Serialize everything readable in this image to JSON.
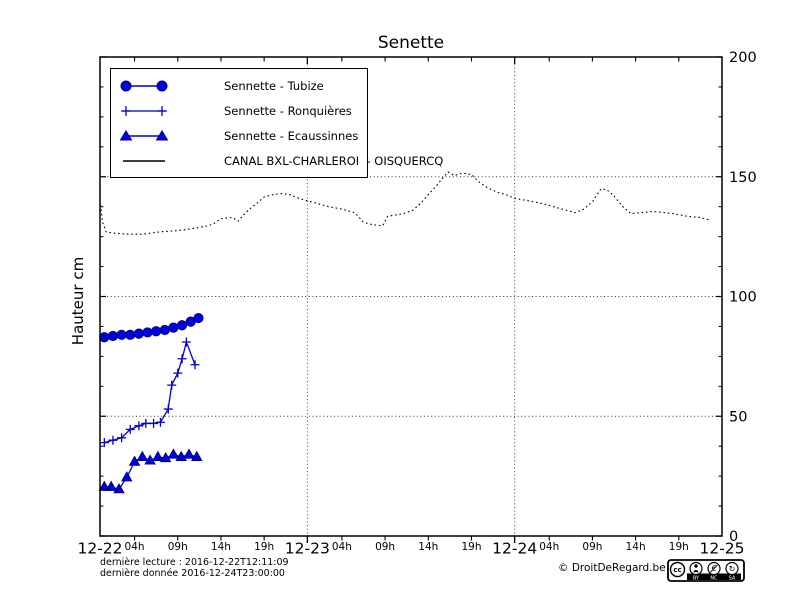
{
  "title": "Senette",
  "ylabel": "Hauteur cm",
  "legend": [
    {
      "label": "Sennette - Tubize",
      "marker": "circle"
    },
    {
      "label": "Sennette - Ronquières",
      "marker": "plus"
    },
    {
      "label": "Sennette - Ecaussinnes",
      "marker": "triangle"
    },
    {
      "label": "CANAL BXL-CHARLEROI  - OISQUERCQ",
      "marker": "line"
    }
  ],
  "footer": {
    "line1": "dernière lecture : 2016-12-22T12:11:09",
    "line2": "dernière donnée  2016-12-24T23:00:00",
    "copyright": "© DroitDeRegard.be",
    "license_labels": [
      "BY",
      "NC",
      "SA"
    ],
    "license_icons": [
      "cc-icon",
      "by-person-icon",
      "nc-euro-icon",
      "sa-arrow-icon"
    ]
  },
  "colors": {
    "series_blue": "#0000CC",
    "marker_fill": "#0000E6",
    "marker_edge": "#000080",
    "canal_black": "#000000",
    "grid": "#333333"
  },
  "chart_data": {
    "type": "line",
    "title": "Senette",
    "ylabel": "Hauteur cm",
    "ylim": [
      0,
      200
    ],
    "x_range_hours": [
      0,
      72
    ],
    "yticks": [
      0,
      50,
      100,
      150,
      200
    ],
    "grid_y": [
      50,
      100,
      150
    ],
    "grid_x_hours": [
      24,
      48
    ],
    "legend_position": "upper-left",
    "day_labels": [
      {
        "t": 0,
        "label": "12-22"
      },
      {
        "t": 24,
        "label": "12-23"
      },
      {
        "t": 48,
        "label": "12-24"
      },
      {
        "t": 72,
        "label": "12-25"
      }
    ],
    "hour_labels": [
      {
        "t": 4,
        "label": "04h"
      },
      {
        "t": 9,
        "label": "09h"
      },
      {
        "t": 14,
        "label": "14h"
      },
      {
        "t": 19,
        "label": "19h"
      },
      {
        "t": 28,
        "label": "04h"
      },
      {
        "t": 33,
        "label": "09h"
      },
      {
        "t": 38,
        "label": "14h"
      },
      {
        "t": 43,
        "label": "19h"
      },
      {
        "t": 52,
        "label": "04h"
      },
      {
        "t": 57,
        "label": "09h"
      },
      {
        "t": 62,
        "label": "14h"
      },
      {
        "t": 67,
        "label": "19h"
      }
    ],
    "series": [
      {
        "name": "Sennette - Tubize",
        "marker": "circle",
        "color": "#0000CC",
        "points": [
          [
            0.5,
            83
          ],
          [
            1.5,
            83.5
          ],
          [
            2.5,
            84
          ],
          [
            3.5,
            84
          ],
          [
            4.5,
            84.5
          ],
          [
            5.5,
            85
          ],
          [
            6.5,
            85.5
          ],
          [
            7.5,
            86
          ],
          [
            8.5,
            87
          ],
          [
            9.5,
            88
          ],
          [
            10.5,
            89.5
          ],
          [
            11.4,
            91
          ]
        ]
      },
      {
        "name": "Sennette - Ronquières",
        "marker": "plus",
        "color": "#0000CC",
        "points": [
          [
            0.5,
            39
          ],
          [
            1.5,
            40
          ],
          [
            2.5,
            41
          ],
          [
            3.5,
            44.5
          ],
          [
            4.5,
            46
          ],
          [
            5.3,
            47
          ],
          [
            6.2,
            47
          ],
          [
            7,
            47.5
          ],
          [
            7.9,
            53
          ],
          [
            8.3,
            63
          ],
          [
            9,
            68
          ],
          [
            9.5,
            74
          ],
          [
            10,
            81
          ],
          [
            11,
            71.5
          ]
        ]
      },
      {
        "name": "Sennette - Ecaussinnes",
        "marker": "triangle",
        "color": "#0000CC",
        "points": [
          [
            0.5,
            20.5
          ],
          [
            1.3,
            20.5
          ],
          [
            2.2,
            19.5
          ],
          [
            3.1,
            24.5
          ],
          [
            4,
            31
          ],
          [
            4.9,
            33
          ],
          [
            5.8,
            31.5
          ],
          [
            6.7,
            33
          ],
          [
            7.6,
            32.5
          ],
          [
            8.5,
            34
          ],
          [
            9.4,
            33
          ],
          [
            10.3,
            34
          ],
          [
            11.2,
            33
          ]
        ]
      },
      {
        "name": "CANAL BXL-CHARLEROI  - OISQUERCQ",
        "marker": "none",
        "style": "dotted",
        "color": "#000000",
        "points": [
          [
            0,
            140
          ],
          [
            0.3,
            131
          ],
          [
            0.7,
            127
          ],
          [
            1.5,
            126.5
          ],
          [
            3,
            126
          ],
          [
            5,
            126
          ],
          [
            7,
            127
          ],
          [
            9,
            127.5
          ],
          [
            11,
            128.5
          ],
          [
            12.5,
            129.5
          ],
          [
            13.2,
            130.5
          ],
          [
            14,
            132.5
          ],
          [
            15.3,
            133
          ],
          [
            16,
            131.5
          ],
          [
            16.6,
            134
          ],
          [
            17.3,
            136.5
          ],
          [
            18.2,
            139
          ],
          [
            19,
            141.5
          ],
          [
            20,
            142.5
          ],
          [
            21,
            143
          ],
          [
            22,
            142.5
          ],
          [
            23,
            141
          ],
          [
            24,
            140
          ],
          [
            25,
            139
          ],
          [
            26.5,
            137.5
          ],
          [
            28,
            136.5
          ],
          [
            29.5,
            135
          ],
          [
            30.5,
            131
          ],
          [
            31.5,
            130
          ],
          [
            32.7,
            129.5
          ],
          [
            33.3,
            133.5
          ],
          [
            35,
            134.5
          ],
          [
            36.2,
            136
          ],
          [
            37,
            138.5
          ],
          [
            38,
            142.5
          ],
          [
            39,
            146.5
          ],
          [
            39.8,
            150
          ],
          [
            40.3,
            152
          ],
          [
            41,
            150.5
          ],
          [
            41.9,
            151.5
          ],
          [
            43,
            151
          ],
          [
            43.8,
            148
          ],
          [
            44.8,
            145.5
          ],
          [
            46,
            143.5
          ],
          [
            47,
            142.5
          ],
          [
            48,
            141
          ],
          [
            49.5,
            140
          ],
          [
            51,
            139
          ],
          [
            52.5,
            137.5
          ],
          [
            54,
            136
          ],
          [
            55,
            135
          ],
          [
            56,
            136.5
          ],
          [
            57,
            139.5
          ],
          [
            58,
            145
          ],
          [
            58.7,
            144.5
          ],
          [
            59.5,
            142
          ],
          [
            60.5,
            137.5
          ],
          [
            61.5,
            134.5
          ],
          [
            62.5,
            135
          ],
          [
            64,
            135.5
          ],
          [
            65.5,
            135
          ],
          [
            66.5,
            134.5
          ],
          [
            68,
            133.5
          ],
          [
            69.5,
            133
          ],
          [
            70.5,
            132
          ]
        ]
      }
    ]
  }
}
